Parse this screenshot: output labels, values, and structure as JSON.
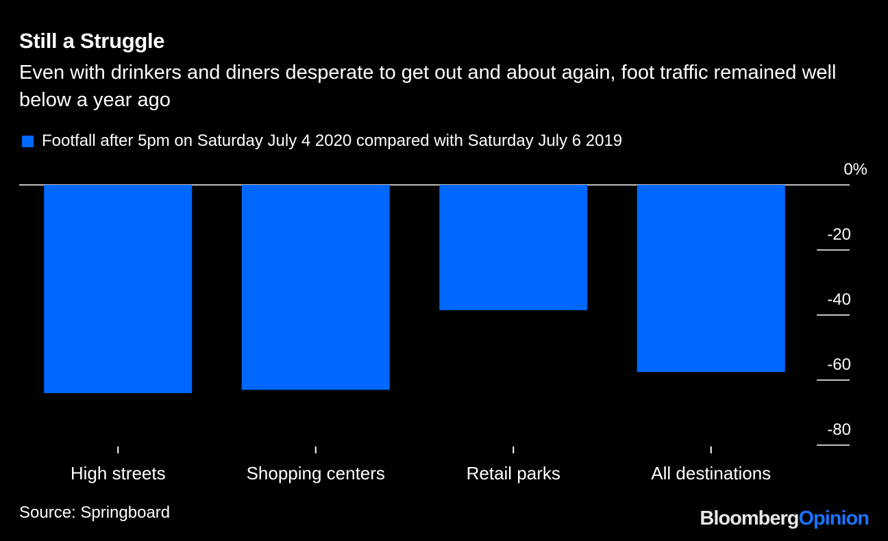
{
  "title": "Still a Struggle",
  "subtitle": "Even with drinkers and diners desperate to get out and about again, foot traffic remained well below a year ago",
  "legend_label": "Footfall after 5pm on Saturday July 4 2020 compared with Saturday July 6 2019",
  "source": "Source: Springboard",
  "brand": {
    "part1": "Bloomberg",
    "part2": "Opinion"
  },
  "colors": {
    "bar": "#0068ff",
    "background": "#000000",
    "text": "#ffffff",
    "brand_accent": "#1a73ff"
  },
  "chart_data": {
    "type": "bar",
    "categories": [
      "High streets",
      "Shopping centers",
      "Retail parks",
      "All destinations"
    ],
    "values": [
      -64,
      -63,
      -38.5,
      -57.5
    ],
    "series": [
      {
        "name": "Footfall after 5pm on Saturday July 4 2020 compared with Saturday July 6 2019",
        "values": [
          -64,
          -63,
          -38.5,
          -57.5
        ]
      }
    ],
    "title": "Still a Struggle",
    "xlabel": "",
    "ylabel": "",
    "ylim": [
      -80,
      0
    ],
    "yticks": [
      0,
      -20,
      -40,
      -60,
      -80
    ],
    "ytick_labels": [
      "0%",
      "-20",
      "-40",
      "-60",
      "-80"
    ],
    "y_axis_position": "right",
    "legend_position": "top-left"
  }
}
